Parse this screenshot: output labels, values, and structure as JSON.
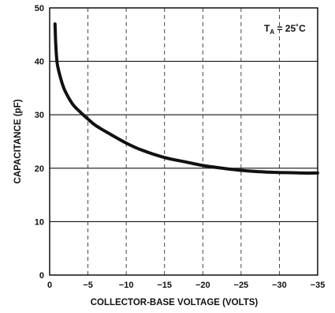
{
  "chart_data": {
    "type": "line",
    "title": "",
    "xlabel": "COLLECTOR-BASE VOLTAGE (VOLTS)",
    "ylabel": "CAPACITANCE (pF)",
    "xlim": [
      0,
      -35
    ],
    "ylim": [
      0,
      50
    ],
    "grid": true,
    "x_ticks": [
      0,
      -5,
      -10,
      -15,
      -20,
      -25,
      -30,
      -35
    ],
    "x_tick_labels": [
      "0",
      "−5",
      "−10",
      "−15",
      "−20",
      "−25",
      "−30",
      "−35"
    ],
    "y_ticks": [
      0,
      10,
      20,
      30,
      40,
      50
    ],
    "y_tick_labels": [
      "0",
      "10",
      "20",
      "30",
      "40",
      "50"
    ],
    "annotation": {
      "main": "T",
      "sub": "A",
      "rest": " = 25˚C"
    },
    "series": [
      {
        "x": [
          -0.7,
          -0.8,
          -1,
          -1.5,
          -2,
          -3,
          -4,
          -5,
          -6,
          -8,
          -10,
          -12,
          -15,
          -18,
          -20,
          -22,
          -25,
          -28,
          -30,
          -33,
          -35
        ],
        "y": [
          47,
          43,
          39.5,
          36.5,
          34.5,
          32,
          30.5,
          29.2,
          28,
          26.3,
          24.7,
          23.4,
          22,
          21.1,
          20.5,
          20.1,
          19.6,
          19.3,
          19.2,
          19.1,
          19.1
        ]
      }
    ]
  }
}
